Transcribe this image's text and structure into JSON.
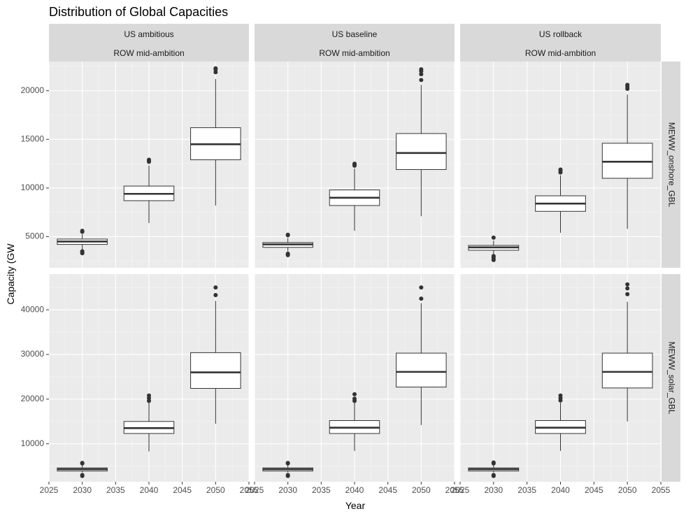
{
  "chart_data": {
    "type": "boxplot",
    "title": "Distribution of Global Capacities",
    "xlabel": "Year",
    "ylabel": "Capacity (GW",
    "x_ticks": [
      2025,
      2030,
      2035,
      2040,
      2045,
      2050,
      2055
    ],
    "xlim": [
      2025,
      2055
    ],
    "columns": [
      {
        "line1": "US ambitious",
        "line2": "ROW mid-ambition"
      },
      {
        "line1": "US baseline",
        "line2": "ROW mid-ambition"
      },
      {
        "line1": "US rollback",
        "line2": "ROW mid-ambition"
      }
    ],
    "rows": [
      {
        "label": "MEWW_onshore_GBL",
        "ylim": [
          1800,
          23000
        ],
        "y_ticks": [
          5000,
          10000,
          15000,
          20000
        ]
      },
      {
        "label": "MEWW_solar_GBL",
        "ylim": [
          1500,
          48000
        ],
        "y_ticks": [
          10000,
          20000,
          30000,
          40000
        ]
      }
    ],
    "panels": [
      {
        "row": 0,
        "col": 0,
        "boxes": [
          {
            "x": 2030,
            "min": 3700,
            "q1": 4200,
            "median": 4500,
            "q3": 4750,
            "max": 5250,
            "outliers": [
              3300,
              3400,
              3500,
              5500,
              5600
            ]
          },
          {
            "x": 2040,
            "min": 6400,
            "q1": 8700,
            "median": 9400,
            "q3": 10200,
            "max": 12300,
            "outliers": [
              12700,
              12800,
              12900
            ]
          },
          {
            "x": 2050,
            "min": 8200,
            "q1": 12900,
            "median": 14500,
            "q3": 16200,
            "max": 21200,
            "outliers": [
              21900,
              22200,
              22300
            ]
          }
        ]
      },
      {
        "row": 0,
        "col": 1,
        "boxes": [
          {
            "x": 2030,
            "min": 3500,
            "q1": 3900,
            "median": 4200,
            "q3": 4400,
            "max": 4850,
            "outliers": [
              3100,
              3200,
              3250,
              5150,
              5200
            ]
          },
          {
            "x": 2040,
            "min": 5600,
            "q1": 8200,
            "median": 9000,
            "q3": 9800,
            "max": 12000,
            "outliers": [
              12300,
              12400,
              12500
            ]
          },
          {
            "x": 2050,
            "min": 7100,
            "q1": 11900,
            "median": 13600,
            "q3": 15600,
            "max": 20600,
            "outliers": [
              21100,
              21700,
              22000,
              22200
            ]
          }
        ]
      },
      {
        "row": 0,
        "col": 2,
        "boxes": [
          {
            "x": 2030,
            "min": 3200,
            "q1": 3600,
            "median": 3900,
            "q3": 4100,
            "max": 4600,
            "outliers": [
              2600,
              2700,
              2900,
              3000,
              4900
            ]
          },
          {
            "x": 2040,
            "min": 5400,
            "q1": 7600,
            "median": 8400,
            "q3": 9200,
            "max": 11300,
            "outliers": [
              11600,
              11800,
              11900
            ]
          },
          {
            "x": 2050,
            "min": 5800,
            "q1": 11000,
            "median": 12700,
            "q3": 14600,
            "max": 19600,
            "outliers": [
              20200,
              20400,
              20600
            ]
          }
        ]
      },
      {
        "row": 1,
        "col": 0,
        "boxes": [
          {
            "x": 2030,
            "min": 3600,
            "q1": 3900,
            "median": 4300,
            "q3": 4600,
            "max": 5200,
            "outliers": [
              2800,
              3000,
              5600,
              5700
            ]
          },
          {
            "x": 2040,
            "min": 8300,
            "q1": 12300,
            "median": 13500,
            "q3": 15000,
            "max": 19200,
            "outliers": [
              19600,
              20200,
              20800
            ]
          },
          {
            "x": 2050,
            "min": 14500,
            "q1": 22400,
            "median": 26000,
            "q3": 30400,
            "max": 42000,
            "outliers": [
              43300,
              45000
            ]
          }
        ]
      },
      {
        "row": 1,
        "col": 1,
        "boxes": [
          {
            "x": 2030,
            "min": 3600,
            "q1": 3900,
            "median": 4300,
            "q3": 4600,
            "max": 5200,
            "outliers": [
              2800,
              3000,
              5600,
              5700
            ]
          },
          {
            "x": 2040,
            "min": 8400,
            "q1": 12300,
            "median": 13600,
            "q3": 15200,
            "max": 19200,
            "outliers": [
              19600,
              20100,
              21100
            ]
          },
          {
            "x": 2050,
            "min": 14200,
            "q1": 22700,
            "median": 26100,
            "q3": 30300,
            "max": 41500,
            "outliers": [
              42500,
              45000
            ]
          }
        ]
      },
      {
        "row": 1,
        "col": 2,
        "boxes": [
          {
            "x": 2030,
            "min": 3600,
            "q1": 3900,
            "median": 4300,
            "q3": 4600,
            "max": 5200,
            "outliers": [
              2800,
              3000,
              5600,
              5800
            ]
          },
          {
            "x": 2040,
            "min": 8400,
            "q1": 12300,
            "median": 13600,
            "q3": 15200,
            "max": 19200,
            "outliers": [
              19700,
              20200,
              20800
            ]
          },
          {
            "x": 2050,
            "min": 15000,
            "q1": 22500,
            "median": 26100,
            "q3": 30300,
            "max": 41800,
            "outliers": [
              43500,
              44800,
              45700
            ]
          }
        ]
      }
    ]
  }
}
